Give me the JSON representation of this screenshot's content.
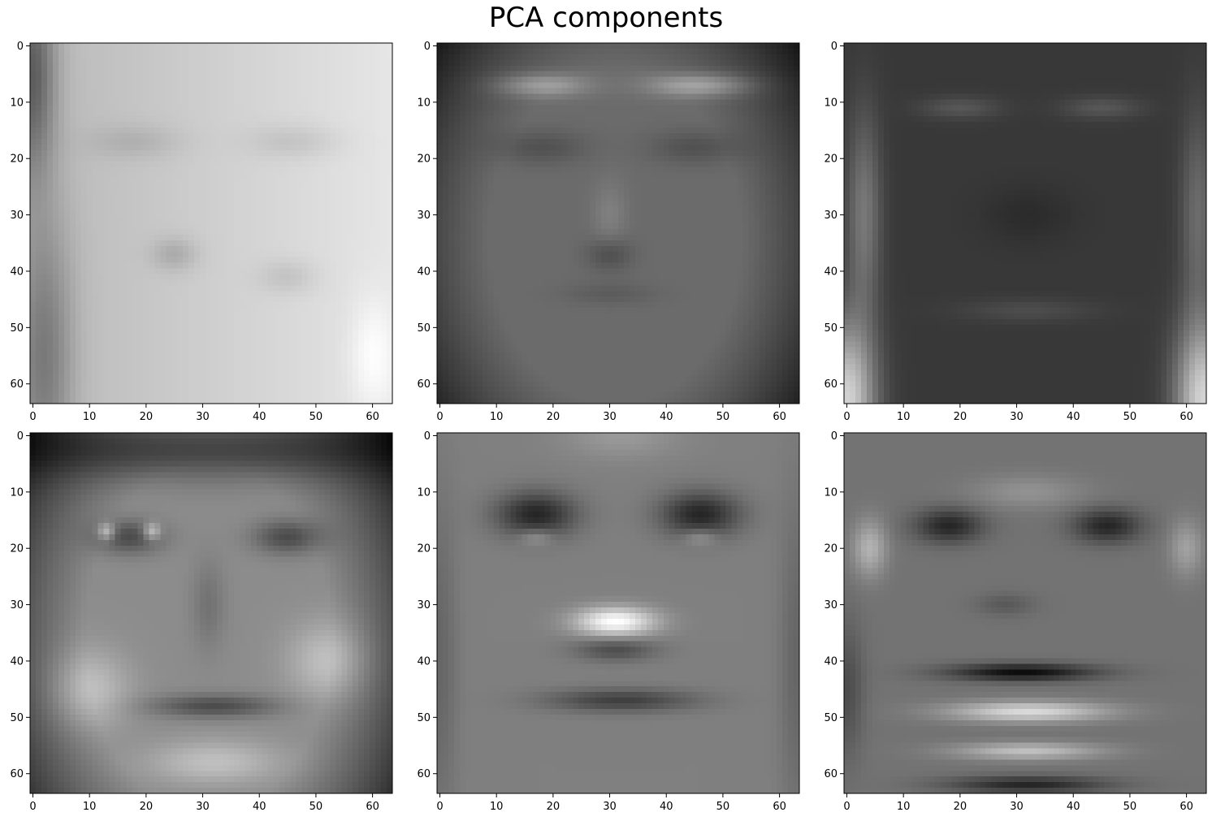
{
  "title": "PCA components",
  "chart_data": {
    "type": "heatmap",
    "colormap": "gray",
    "title": "PCA components",
    "layout": "2 rows x 3 columns",
    "grid": false,
    "image_size": [
      64,
      64
    ],
    "xlim": [
      -0.5,
      63.5
    ],
    "ylim": [
      63.5,
      -0.5
    ],
    "x_ticks": [
      0,
      10,
      20,
      30,
      40,
      50,
      60
    ],
    "y_ticks": [
      0,
      10,
      20,
      30,
      40,
      50,
      60
    ],
    "x_tick_labels": [
      "0",
      "10",
      "20",
      "30",
      "40",
      "50",
      "60"
    ],
    "y_tick_labels": [
      "0",
      "10",
      "20",
      "30",
      "40",
      "50",
      "60"
    ],
    "panels": [
      {
        "component": 1,
        "appearance": "light face, dark left edge"
      },
      {
        "component": 2,
        "appearance": "mid-gray face, bright brow band"
      },
      {
        "component": 3,
        "appearance": "dark face, bright lower corners"
      },
      {
        "component": 4,
        "appearance": "dark eyes with glasses, bright cheeks"
      },
      {
        "component": 5,
        "appearance": "dark eye sockets, bright nose tip"
      },
      {
        "component": 6,
        "appearance": "bright face outline, dark mouth line"
      }
    ]
  }
}
